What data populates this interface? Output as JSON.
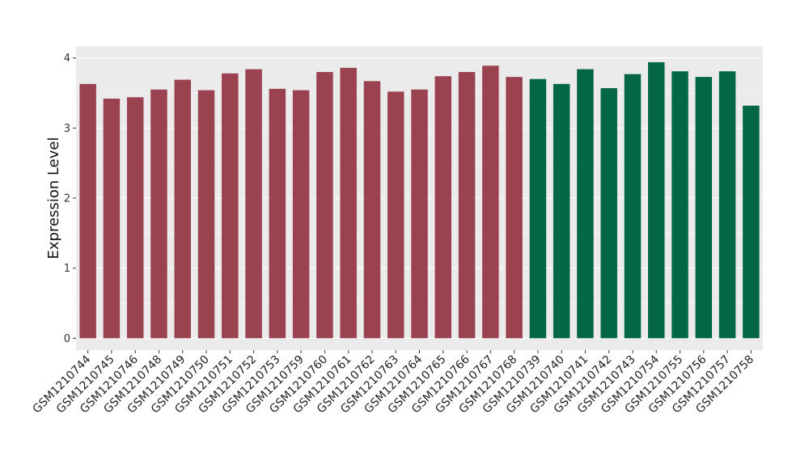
{
  "chart_data": {
    "type": "bar",
    "ylabel": "Expression Level",
    "xlabel": "",
    "ylim": [
      -0.17,
      4.17
    ],
    "yticks": [
      0,
      1,
      2,
      3,
      4
    ],
    "grid": true,
    "legend": "none",
    "panel_background": "#ebebeb",
    "grid_color": "#ffffff",
    "categories": [
      "GSM1210744",
      "GSM1210745",
      "GSM1210746",
      "GSM1210748",
      "GSM1210749",
      "GSM1210750",
      "GSM1210751",
      "GSM1210752",
      "GSM1210753",
      "GSM1210759",
      "GSM1210760",
      "GSM1210761",
      "GSM1210762",
      "GSM1210763",
      "GSM1210764",
      "GSM1210765",
      "GSM1210766",
      "GSM1210767",
      "GSM1210768",
      "GSM1210739",
      "GSM1210740",
      "GSM1210741",
      "GSM1210742",
      "GSM1210743",
      "GSM1210754",
      "GSM1210755",
      "GSM1210756",
      "GSM1210757",
      "GSM1210758"
    ],
    "values": [
      3.63,
      3.42,
      3.44,
      3.55,
      3.69,
      3.54,
      3.78,
      3.84,
      3.56,
      3.54,
      3.8,
      3.86,
      3.67,
      3.52,
      3.55,
      3.74,
      3.8,
      3.89,
      3.73,
      3.7,
      3.63,
      3.84,
      3.57,
      3.77,
      3.94,
      3.81,
      3.73,
      3.81,
      3.32
    ],
    "colors": [
      "#9b4250",
      "#9b4250",
      "#9b4250",
      "#9b4250",
      "#9b4250",
      "#9b4250",
      "#9b4250",
      "#9b4250",
      "#9b4250",
      "#9b4250",
      "#9b4250",
      "#9b4250",
      "#9b4250",
      "#9b4250",
      "#9b4250",
      "#9b4250",
      "#9b4250",
      "#9b4250",
      "#9b4250",
      "#036744",
      "#036744",
      "#036744",
      "#036744",
      "#036744",
      "#036744",
      "#036744",
      "#036744",
      "#036744",
      "#036744"
    ]
  }
}
